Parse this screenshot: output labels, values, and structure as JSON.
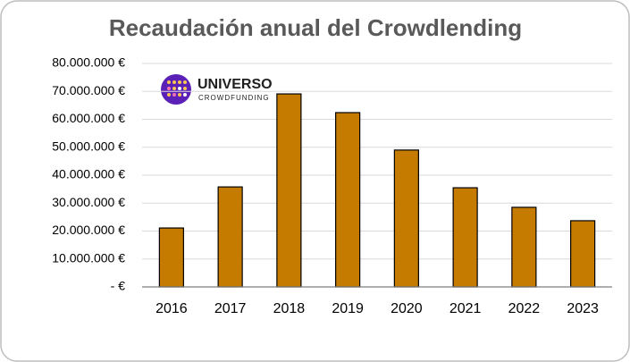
{
  "chart_data": {
    "type": "bar",
    "title": "Recaudación anual del Crowdlending",
    "logo": {
      "name": "UNIVERSO",
      "tagline": "CROWDFUNDING"
    },
    "categories": [
      "2016",
      "2017",
      "2018",
      "2019",
      "2020",
      "2021",
      "2022",
      "2023"
    ],
    "values": [
      21100000,
      35800000,
      69100000,
      62400000,
      49000000,
      35500000,
      28500000,
      23700000
    ],
    "color": "#c57a00",
    "ylim": [
      0,
      80000000
    ],
    "yticks": [
      {
        "value": 0,
        "label": "-  €"
      },
      {
        "value": 10000000,
        "label": "10.000.000 €"
      },
      {
        "value": 20000000,
        "label": "20.000.000 €"
      },
      {
        "value": 30000000,
        "label": "30.000.000 €"
      },
      {
        "value": 40000000,
        "label": "40.000.000 €"
      },
      {
        "value": 50000000,
        "label": "50.000.000 €"
      },
      {
        "value": 60000000,
        "label": "60.000.000 €"
      },
      {
        "value": 70000000,
        "label": "70.000.000 €"
      },
      {
        "value": 80000000,
        "label": "80.000.000 €"
      }
    ],
    "grid": true
  }
}
